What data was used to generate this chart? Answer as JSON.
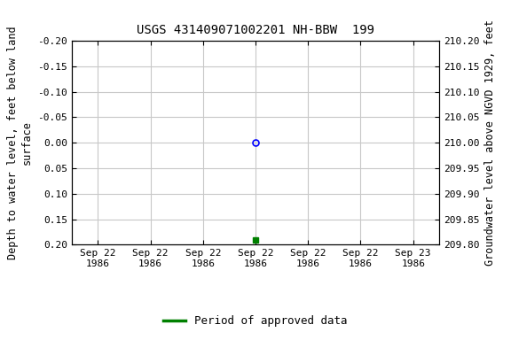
{
  "title": "USGS 431409071002201 NH-BBW  199",
  "ylabel_left": "Depth to water level, feet below land\nsurface",
  "ylabel_right": "Groundwater level above NGVD 1929, feet",
  "ylim_left": [
    -0.2,
    0.2
  ],
  "ylim_right": [
    209.8,
    210.2
  ],
  "yticks_left": [
    -0.2,
    -0.15,
    -0.1,
    -0.05,
    0.0,
    0.05,
    0.1,
    0.15,
    0.2
  ],
  "ytick_labels_left": [
    "-0.20",
    "-0.15",
    "-0.10",
    "-0.05",
    "0.00",
    "0.05",
    "0.10",
    "0.15",
    "0.20"
  ],
  "yticks_right": [
    209.8,
    209.85,
    209.9,
    209.95,
    210.0,
    210.05,
    210.1,
    210.15,
    210.2
  ],
  "ytick_labels_right": [
    "209.80",
    "209.85",
    "209.90",
    "209.95",
    "210.00",
    "210.05",
    "210.10",
    "210.15",
    "210.20"
  ],
  "point_blue_x": 3.0,
  "point_blue_y": 0.0,
  "point_green_x": 3.0,
  "point_green_y": 0.19,
  "legend_label": "Period of approved data",
  "legend_color": "#008000",
  "background_color": "#ffffff",
  "grid_color": "#c8c8c8",
  "xtick_positions": [
    0,
    1,
    2,
    3,
    4,
    5,
    6
  ],
  "xtick_labels": [
    "Sep 22\n1986",
    "Sep 22\n1986",
    "Sep 22\n1986",
    "Sep 22\n1986",
    "Sep 22\n1986",
    "Sep 22\n1986",
    "Sep 23\n1986"
  ],
  "xlim": [
    -0.5,
    6.5
  ],
  "title_fontsize": 10,
  "axis_label_fontsize": 8.5,
  "tick_fontsize": 8,
  "legend_fontsize": 9
}
